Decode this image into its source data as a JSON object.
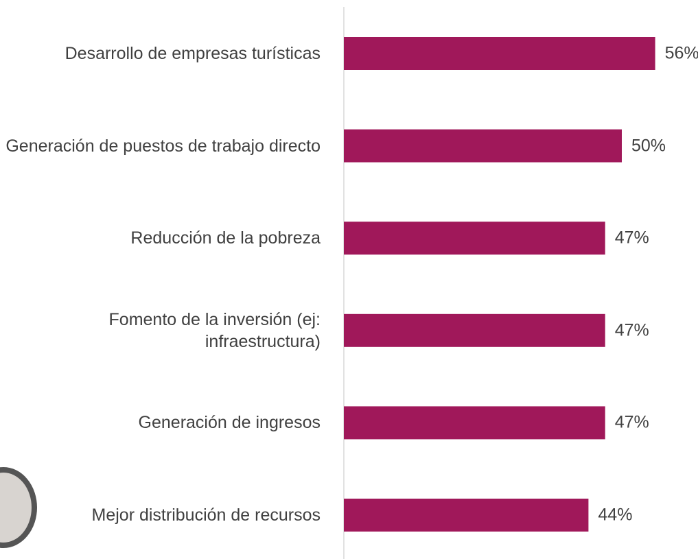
{
  "chart_data": {
    "type": "bar",
    "orientation": "horizontal",
    "categories": [
      "Desarrollo de empresas turísticas",
      "Generación de puestos de trabajo directo",
      "Reducción de la pobreza",
      "Fomento de la inversión (ej: infraestructura)",
      "Generación de ingresos",
      "Mejor distribución de recursos"
    ],
    "values": [
      56,
      50,
      47,
      47,
      47,
      44
    ],
    "value_labels": [
      "56%",
      "50%",
      "47%",
      "47%",
      "47%",
      "44%"
    ],
    "color": "#a0185a"
  }
}
